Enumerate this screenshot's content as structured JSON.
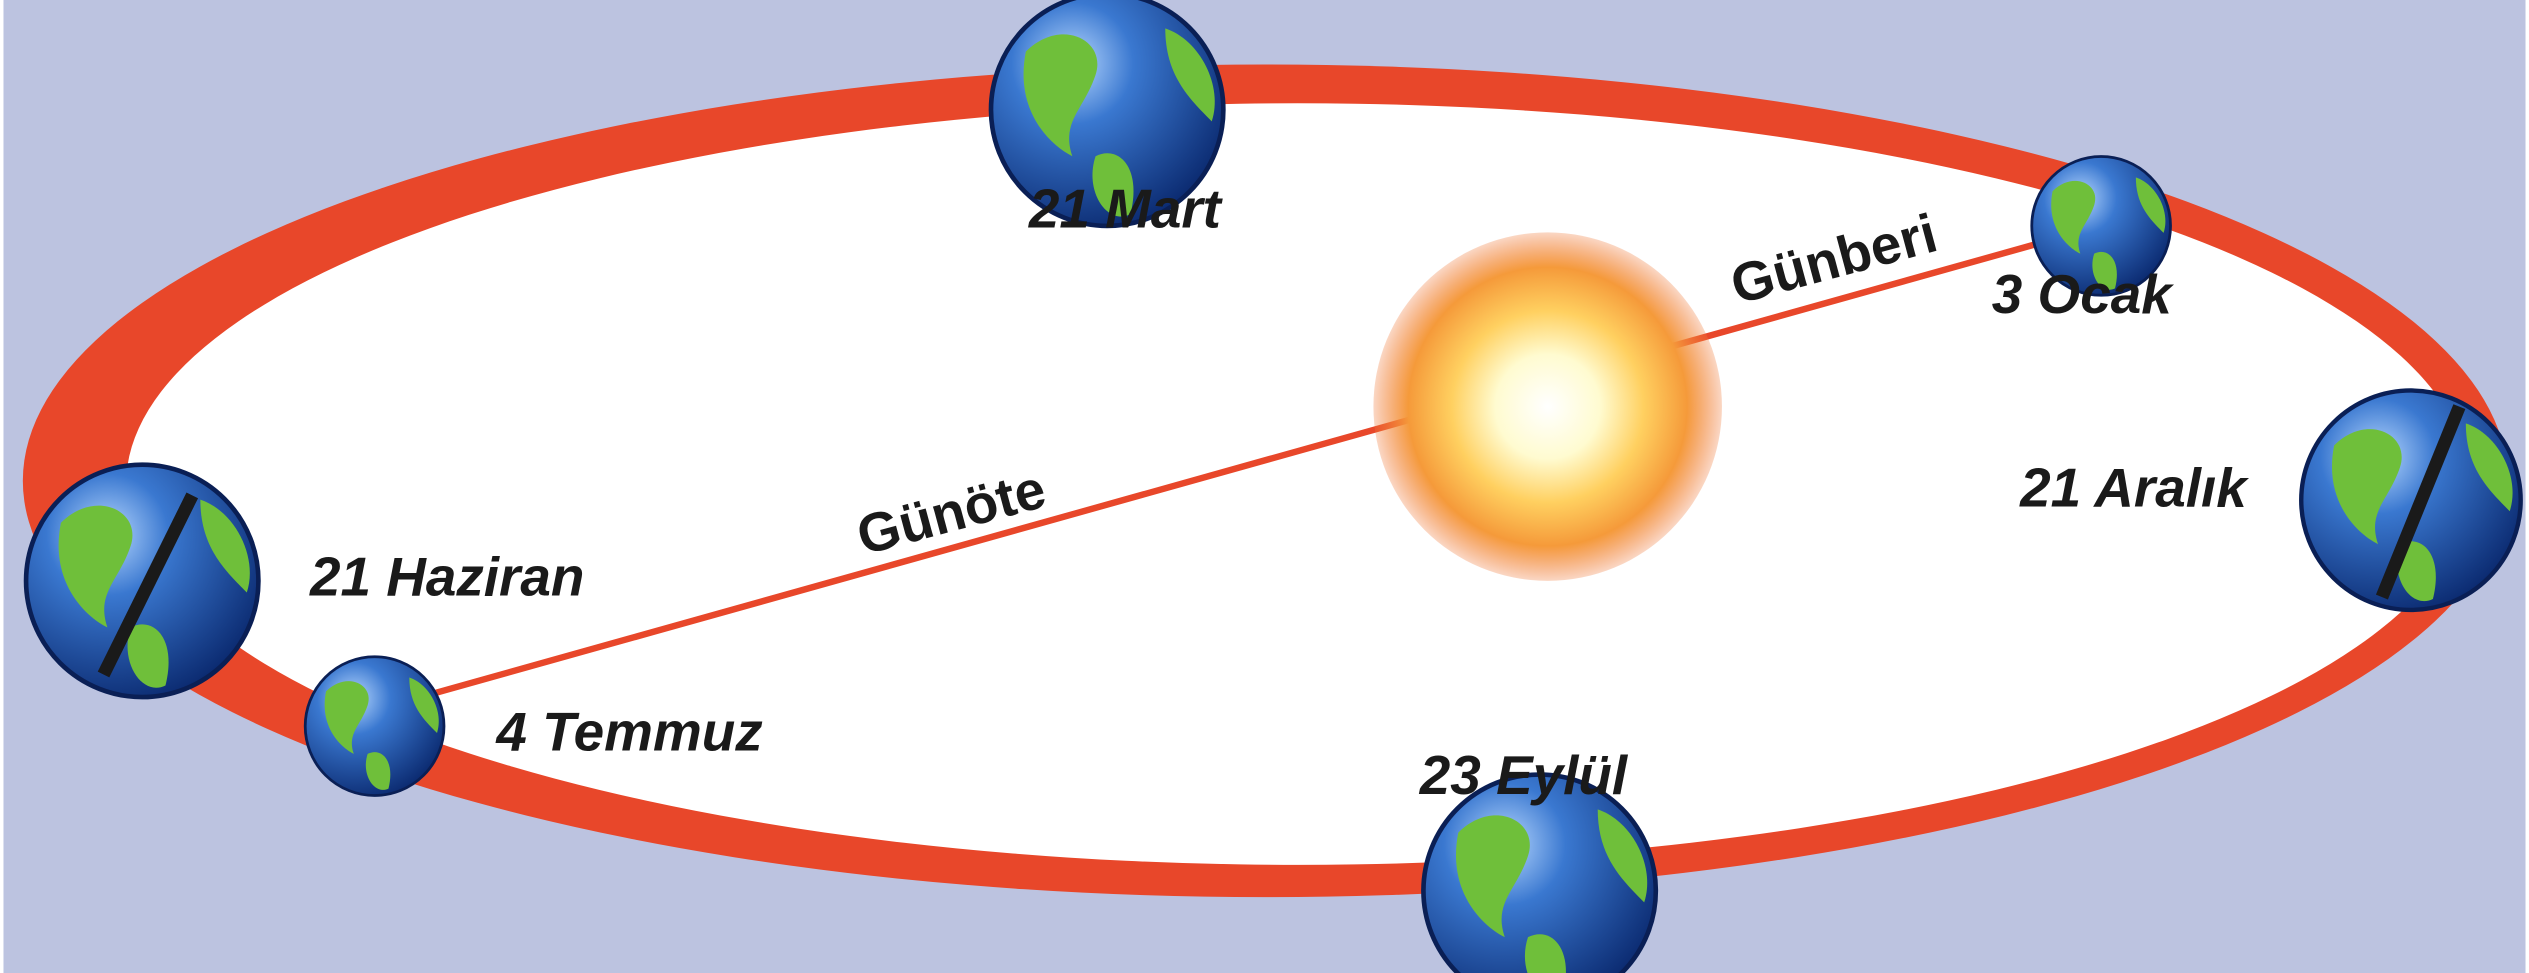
{
  "nodes": [
    {
      "label": "21 Mart"
    },
    {
      "label": "3 Ocak"
    },
    {
      "label": "21 Aralık"
    },
    {
      "label": "23 Eylül"
    },
    {
      "label": "4 Temmuz"
    },
    {
      "label": "21 Haziran"
    }
  ],
  "distances": {
    "perihelion": "Günberi",
    "aphelion": "Günöte"
  }
}
